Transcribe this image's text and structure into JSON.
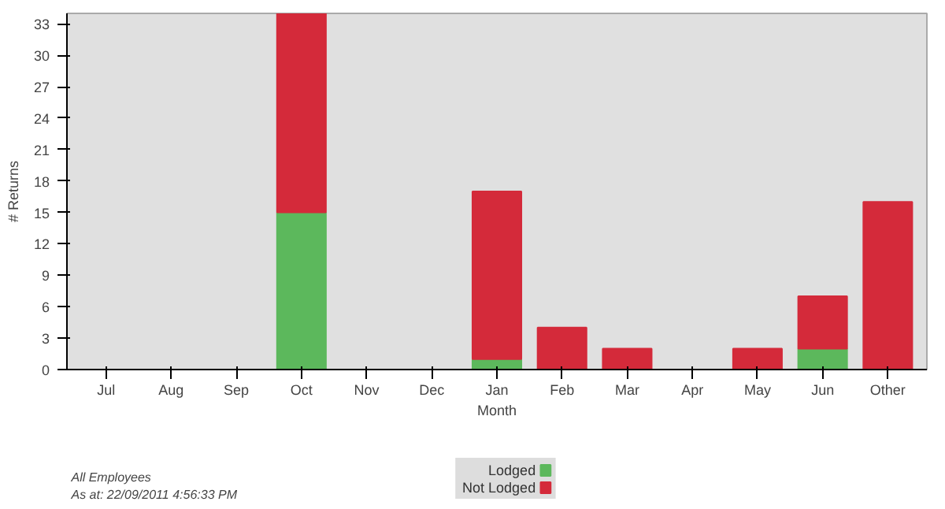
{
  "chart_data": {
    "type": "bar",
    "stacked": true,
    "xlabel": "Month",
    "ylabel": "# Returns",
    "categories": [
      "Jul",
      "Aug",
      "Sep",
      "Oct",
      "Nov",
      "Dec",
      "Jan",
      "Feb",
      "Mar",
      "Apr",
      "May",
      "Jun",
      "Other"
    ],
    "series": [
      {
        "name": "Lodged",
        "color": "#5cb85c",
        "values": [
          0,
          0,
          0,
          15,
          0,
          0,
          1,
          0,
          0,
          0,
          0,
          2,
          0
        ]
      },
      {
        "name": "Not Lodged",
        "color": "#d42a3a",
        "values": [
          0,
          0,
          0,
          19,
          0,
          0,
          16,
          4,
          2,
          0,
          2,
          5,
          16
        ]
      }
    ],
    "ylim": [
      0,
      34
    ],
    "yticks": [
      0,
      3,
      6,
      9,
      12,
      15,
      18,
      21,
      24,
      27,
      30,
      33
    ],
    "grid": false,
    "legend": "bottom",
    "annotations": [
      "All Employees",
      "As at: 22/09/2011 4:56:33 PM"
    ]
  }
}
